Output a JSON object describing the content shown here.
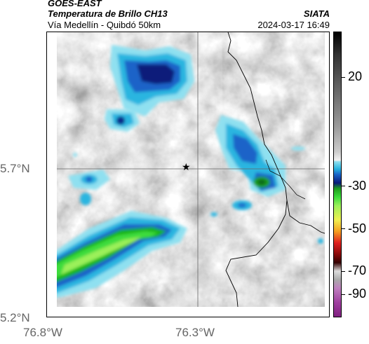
{
  "header": {
    "source": "GOES-EAST",
    "product": "Temperatura de Brillo CH13",
    "region": "Vía Medellín - Quibdó 50km",
    "agency": "SIATA",
    "datetime": "2024-03-17 16:49"
  },
  "axes": {
    "lat_labels": [
      "5.7°N",
      "5.2°N"
    ],
    "lon_labels": [
      "76.8°W",
      "76.3°W"
    ]
  },
  "colorbar": {
    "labels": [
      "20",
      "-30",
      "-50",
      "-70",
      "-90"
    ]
  },
  "marker": {
    "symbol": "★"
  }
}
